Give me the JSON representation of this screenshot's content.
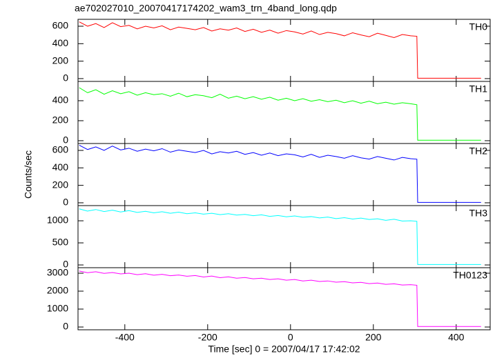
{
  "chart_data": [
    {
      "type": "line",
      "title": "ae702027010_20070417174202_wam3_trn_4band_long.qdp",
      "x": [
        -510,
        -490,
        -470,
        -450,
        -430,
        -410,
        -390,
        -370,
        -350,
        -330,
        -310,
        -290,
        -270,
        -250,
        -230,
        -210,
        -190,
        -170,
        -150,
        -130,
        -110,
        -90,
        -70,
        -50,
        -30,
        -10,
        10,
        30,
        50,
        70,
        90,
        110,
        130,
        150,
        170,
        190,
        210,
        230,
        250,
        270,
        290,
        305,
        307,
        460
      ],
      "series": [
        {
          "name": "TH0",
          "color": "#ff0000",
          "values": [
            650,
            600,
            630,
            585,
            640,
            595,
            610,
            570,
            600,
            580,
            605,
            560,
            590,
            575,
            560,
            585,
            545,
            570,
            555,
            580,
            540,
            565,
            530,
            555,
            520,
            550,
            535,
            510,
            545,
            505,
            530,
            515,
            490,
            525,
            500,
            480,
            520,
            495,
            470,
            505,
            490,
            485,
            5,
            5
          ]
        }
      ],
      "xlim": [
        -513,
        482
      ],
      "xticks": [
        -400,
        -200,
        0,
        200,
        400
      ],
      "ylim": [
        -32,
        679
      ],
      "yticks": [
        0,
        200,
        400,
        600
      ]
    },
    {
      "type": "line",
      "x": [
        -510,
        -490,
        -470,
        -450,
        -430,
        -410,
        -390,
        -370,
        -350,
        -330,
        -310,
        -290,
        -270,
        -250,
        -230,
        -210,
        -190,
        -170,
        -150,
        -130,
        -110,
        -90,
        -70,
        -50,
        -30,
        -10,
        10,
        30,
        50,
        70,
        90,
        110,
        130,
        150,
        170,
        190,
        210,
        230,
        250,
        270,
        290,
        305,
        307,
        460
      ],
      "series": [
        {
          "name": "TH1",
          "color": "#00ff00",
          "values": [
            530,
            480,
            510,
            465,
            500,
            470,
            490,
            455,
            480,
            460,
            470,
            445,
            475,
            440,
            460,
            450,
            430,
            465,
            425,
            445,
            420,
            440,
            415,
            435,
            405,
            425,
            400,
            420,
            395,
            410,
            390,
            405,
            380,
            400,
            375,
            395,
            370,
            385,
            365,
            380,
            370,
            360,
            5,
            5
          ]
        }
      ],
      "xlim": [
        -513,
        482
      ],
      "xticks": [
        -400,
        -200,
        0,
        200,
        400
      ],
      "ylim": [
        -28,
        593
      ],
      "yticks": [
        0,
        200,
        400
      ]
    },
    {
      "type": "line",
      "ylabel": "Counts/sec",
      "x": [
        -510,
        -490,
        -470,
        -450,
        -430,
        -410,
        -390,
        -370,
        -350,
        -330,
        -310,
        -290,
        -270,
        -250,
        -230,
        -210,
        -190,
        -170,
        -150,
        -130,
        -110,
        -90,
        -70,
        -50,
        -30,
        -10,
        10,
        30,
        50,
        70,
        90,
        110,
        130,
        150,
        170,
        190,
        210,
        230,
        250,
        270,
        290,
        305,
        307,
        460
      ],
      "series": [
        {
          "name": "TH2",
          "color": "#0000ff",
          "values": [
            660,
            610,
            640,
            600,
            650,
            605,
            625,
            590,
            615,
            595,
            620,
            580,
            605,
            590,
            575,
            600,
            560,
            585,
            570,
            590,
            555,
            575,
            545,
            570,
            540,
            560,
            550,
            525,
            555,
            520,
            545,
            530,
            510,
            540,
            515,
            500,
            530,
            510,
            490,
            520,
            505,
            500,
            5,
            5
          ]
        }
      ],
      "xlim": [
        -513,
        482
      ],
      "xticks": [
        -400,
        -200,
        0,
        200,
        400
      ],
      "ylim": [
        -32,
        679
      ],
      "yticks": [
        0,
        200,
        400,
        600
      ]
    },
    {
      "type": "line",
      "x": [
        -510,
        -490,
        -470,
        -450,
        -430,
        -410,
        -390,
        -370,
        -350,
        -330,
        -310,
        -290,
        -270,
        -250,
        -230,
        -210,
        -190,
        -170,
        -150,
        -130,
        -110,
        -90,
        -70,
        -50,
        -30,
        -10,
        10,
        30,
        50,
        70,
        90,
        110,
        130,
        150,
        170,
        190,
        210,
        230,
        250,
        270,
        290,
        305,
        307,
        460
      ],
      "series": [
        {
          "name": "TH3",
          "color": "#00ffff",
          "values": [
            1270,
            1220,
            1255,
            1210,
            1240,
            1200,
            1230,
            1190,
            1215,
            1180,
            1205,
            1170,
            1195,
            1160,
            1180,
            1150,
            1170,
            1140,
            1160,
            1130,
            1145,
            1115,
            1135,
            1100,
            1120,
            1090,
            1110,
            1080,
            1095,
            1065,
            1085,
            1050,
            1070,
            1040,
            1060,
            1030,
            1045,
            1010,
            1035,
            995,
            1000,
            990,
            10,
            10
          ]
        }
      ],
      "xlim": [
        -513,
        482
      ],
      "xticks": [
        -400,
        -200,
        0,
        200,
        400
      ],
      "ylim": [
        -62,
        1344
      ],
      "yticks": [
        0,
        500,
        1000
      ]
    },
    {
      "type": "line",
      "xlabel": "Time [sec] 0 = 2007/04/17 17:42:02",
      "x": [
        -510,
        -490,
        -470,
        -450,
        -430,
        -410,
        -390,
        -370,
        -350,
        -330,
        -310,
        -290,
        -270,
        -250,
        -230,
        -210,
        -190,
        -170,
        -150,
        -130,
        -110,
        -90,
        -70,
        -50,
        -30,
        -10,
        10,
        30,
        50,
        70,
        90,
        110,
        130,
        150,
        170,
        190,
        210,
        230,
        250,
        270,
        290,
        305,
        307,
        460
      ],
      "series": [
        {
          "name": "TH0123",
          "color": "#ff00ff",
          "values": [
            3120,
            3030,
            3080,
            2990,
            3040,
            2960,
            3000,
            2920,
            2970,
            2890,
            2940,
            2860,
            2900,
            2830,
            2870,
            2790,
            2840,
            2750,
            2800,
            2720,
            2760,
            2690,
            2720,
            2650,
            2690,
            2610,
            2650,
            2570,
            2610,
            2540,
            2570,
            2500,
            2530,
            2460,
            2490,
            2420,
            2450,
            2380,
            2410,
            2340,
            2360,
            2330,
            30,
            30
          ]
        }
      ],
      "xlim": [
        -513,
        482
      ],
      "xticks": [
        -400,
        -200,
        0,
        200,
        400
      ],
      "ylim": [
        -154,
        3308
      ],
      "yticks": [
        0,
        1000,
        2000,
        3000
      ]
    }
  ]
}
